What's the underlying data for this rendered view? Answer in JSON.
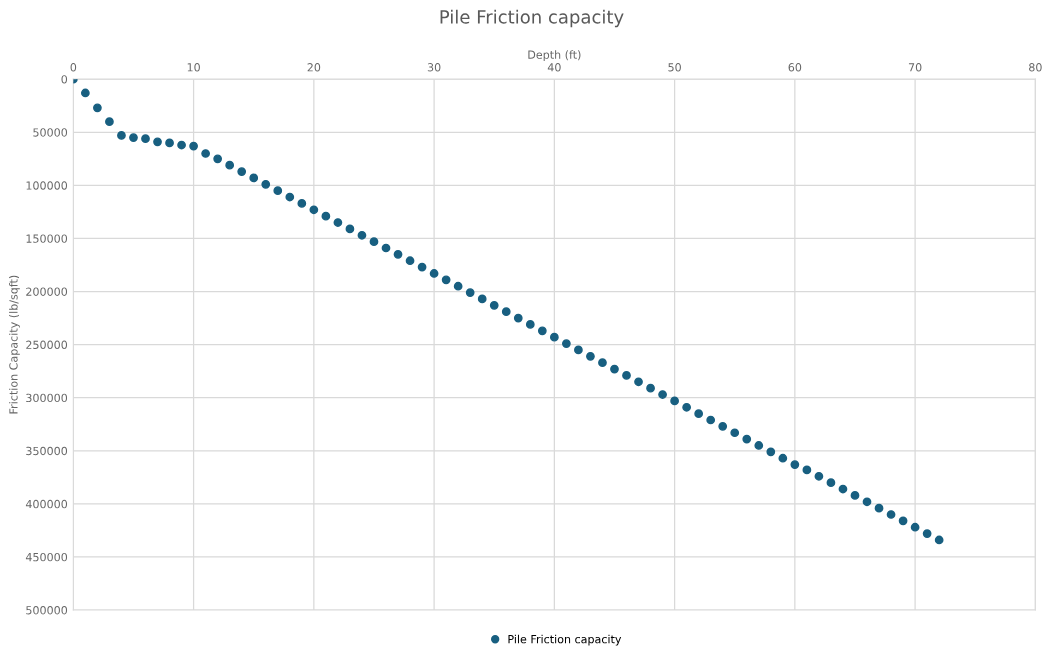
{
  "chart_data": {
    "type": "scatter",
    "title": "Pile Friction capacity",
    "xlabel": "Depth (ft)",
    "ylabel": "Friction Capacity (lb/sqft)",
    "x": [
      0,
      1,
      2,
      3,
      4,
      5,
      6,
      7,
      8,
      9,
      10,
      11,
      12,
      13,
      14,
      15,
      16,
      17,
      18,
      19,
      20,
      21,
      22,
      23,
      24,
      25,
      26,
      27,
      28,
      29,
      30,
      31,
      32,
      33,
      34,
      35,
      36,
      37,
      38,
      39,
      40,
      41,
      42,
      43,
      44,
      45,
      46,
      47,
      48,
      49,
      50,
      51,
      52,
      53,
      54,
      55,
      56,
      57,
      58,
      59,
      60,
      61,
      62,
      63,
      64,
      65,
      66,
      67,
      68,
      69,
      70,
      71,
      72
    ],
    "series": [
      {
        "name": "Pile Friction capacity",
        "color": "#185f80",
        "values": [
          0,
          13000,
          27000,
          40000,
          53000,
          55000,
          56000,
          59000,
          60000,
          62000,
          63000,
          70000,
          75000,
          81000,
          87000,
          93000,
          99000,
          105000,
          111000,
          117000,
          123000,
          129000,
          135000,
          141000,
          147000,
          153000,
          159000,
          165000,
          171000,
          177000,
          183000,
          189000,
          195000,
          201000,
          207000,
          213000,
          219000,
          225000,
          231000,
          237000,
          243000,
          249000,
          255000,
          261000,
          267000,
          273000,
          279000,
          285000,
          291000,
          297000,
          303000,
          309000,
          315000,
          321000,
          327000,
          333000,
          339000,
          345000,
          351000,
          357000,
          363000,
          368000,
          374000,
          380000,
          386000,
          392000,
          398000,
          404000,
          410000,
          416000,
          422000,
          428000,
          434000
        ]
      }
    ],
    "xlim": [
      0,
      80
    ],
    "xticks": [
      0,
      10,
      20,
      30,
      40,
      50,
      60,
      70,
      80
    ],
    "ylim": [
      500000,
      0
    ],
    "yticks": [
      0,
      50000,
      100000,
      150000,
      200000,
      250000,
      300000,
      350000,
      400000,
      450000,
      500000
    ],
    "grid": true,
    "legend": "bottom",
    "marker": "circle"
  }
}
